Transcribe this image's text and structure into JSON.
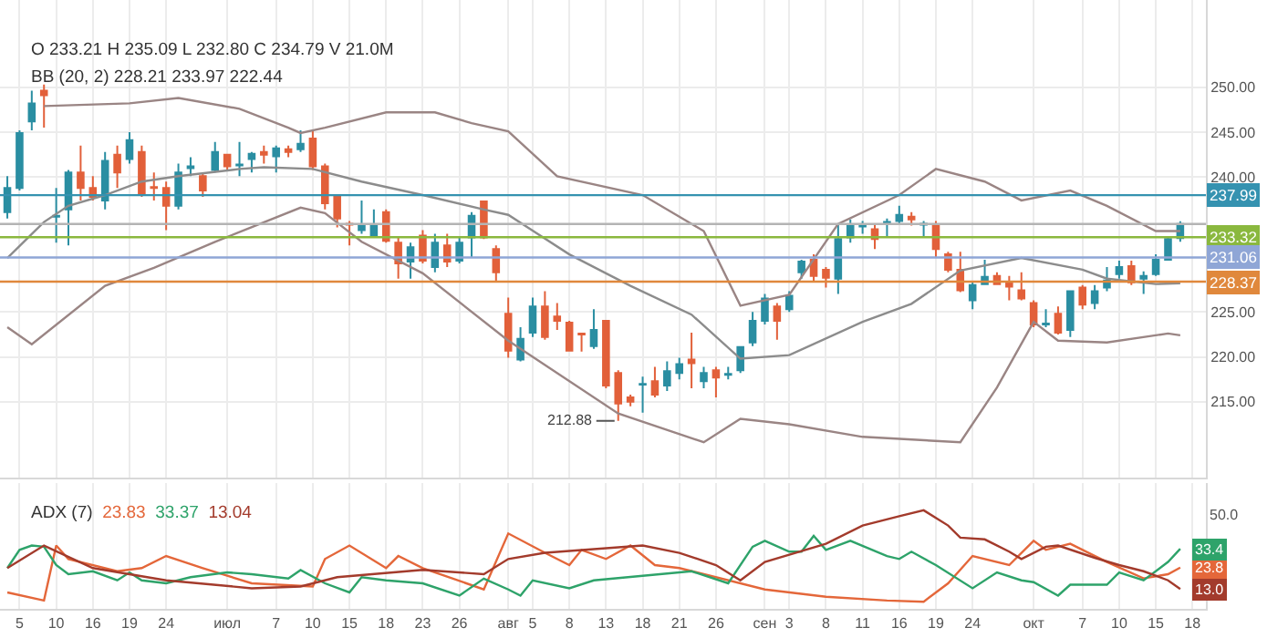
{
  "chart_data": [
    {
      "type": "candlestick",
      "tick_labels": "y",
      "grid": true,
      "annotations": [
        "O 233.21 H 235.09 L 232.80 C 234.79 V 21.0M",
        "BB (20, 2) 228.21 233.97 222.44",
        "212.88"
      ],
      "ohlc": [
        [
          236.1,
          240.1,
          235.4,
          238.8
        ],
        [
          238.8,
          245.2,
          238.5,
          244.9
        ],
        [
          246.2,
          249.6,
          245.2,
          248.2
        ],
        [
          249.6,
          250.3,
          245.5,
          249.1
        ],
        [
          235.6,
          238.8,
          232.7,
          235.7
        ],
        [
          236.4,
          240.8,
          232.4,
          240.5
        ],
        [
          240.5,
          243.5,
          237.4,
          238.8
        ],
        [
          238.8,
          240.1,
          237.4,
          237.8
        ],
        [
          237.4,
          242.8,
          236.4,
          241.8
        ],
        [
          242.5,
          243.5,
          238.8,
          240.5
        ],
        [
          242.0,
          245.0,
          241.5,
          244.1
        ],
        [
          242.8,
          243.5,
          237.8,
          238.0
        ],
        [
          238.9,
          240.5,
          237.4,
          238.8
        ],
        [
          238.8,
          239.5,
          234.1,
          236.8
        ],
        [
          236.8,
          241.5,
          236.4,
          240.5
        ],
        [
          241.0,
          242.2,
          240.1,
          241.2
        ],
        [
          240.1,
          240.5,
          237.8,
          238.5
        ],
        [
          240.8,
          243.9,
          240.5,
          242.8
        ],
        [
          242.5,
          242.6,
          240.8,
          241.2
        ],
        [
          241.3,
          243.9,
          240.1,
          241.4
        ],
        [
          242.0,
          242.8,
          240.5,
          242.6
        ],
        [
          242.8,
          243.5,
          241.5,
          242.5
        ],
        [
          242.3,
          243.5,
          240.5,
          243.2
        ],
        [
          243.1,
          243.5,
          242.2,
          242.8
        ],
        [
          243.1,
          245.2,
          242.8,
          243.7
        ],
        [
          244.3,
          245.2,
          240.8,
          241.2
        ],
        [
          241.2,
          241.5,
          236.4,
          237.1
        ],
        [
          237.9,
          238.1,
          234.4,
          235.4
        ],
        [
          234.8,
          235.1,
          232.4,
          234.7
        ],
        [
          234.1,
          237.4,
          233.7,
          234.6
        ],
        [
          233.5,
          236.4,
          233.4,
          234.6
        ],
        [
          236.1,
          236.4,
          232.7,
          232.9
        ],
        [
          232.7,
          233.4,
          228.7,
          230.4
        ],
        [
          230.6,
          232.7,
          228.7,
          232.2
        ],
        [
          233.5,
          234.1,
          230.4,
          230.7
        ],
        [
          230.0,
          233.7,
          229.4,
          232.7
        ],
        [
          232.4,
          233.7,
          230.0,
          230.6
        ],
        [
          230.7,
          233.4,
          230.4,
          232.7
        ],
        [
          233.3,
          236.1,
          231.0,
          235.7
        ],
        [
          237.3,
          237.4,
          233.1,
          233.3
        ],
        [
          232.0,
          232.4,
          228.3,
          229.4
        ],
        [
          224.8,
          226.6,
          219.9,
          220.7
        ],
        [
          219.7,
          223.3,
          219.5,
          222.0
        ],
        [
          222.7,
          226.6,
          222.2,
          225.6
        ],
        [
          225.6,
          227.3,
          221.9,
          222.2
        ],
        [
          224.5,
          226.0,
          223.0,
          224.0
        ],
        [
          223.8,
          224.0,
          220.6,
          220.7
        ],
        [
          222.6,
          222.7,
          220.6,
          222.5
        ],
        [
          221.2,
          225.3,
          220.9,
          223.0
        ],
        [
          224.0,
          224.1,
          216.5,
          216.8
        ],
        [
          218.2,
          218.5,
          212.88,
          214.8
        ],
        [
          215.5,
          215.8,
          214.5,
          215.0
        ],
        [
          216.9,
          217.8,
          213.8,
          217.0
        ],
        [
          217.3,
          218.9,
          215.5,
          215.8
        ],
        [
          216.8,
          219.5,
          216.2,
          218.4
        ],
        [
          218.2,
          219.9,
          217.5,
          219.2
        ],
        [
          219.7,
          222.7,
          216.5,
          219.3
        ],
        [
          217.3,
          218.9,
          216.5,
          218.2
        ],
        [
          218.5,
          218.9,
          215.5,
          217.7
        ],
        [
          218.0,
          218.9,
          217.5,
          218.1
        ],
        [
          218.5,
          221.2,
          218.2,
          221.1
        ],
        [
          221.6,
          225.0,
          221.2,
          224.0
        ],
        [
          224.0,
          227.0,
          223.6,
          226.5
        ],
        [
          225.6,
          226.0,
          221.9,
          224.0
        ],
        [
          225.3,
          227.3,
          225.0,
          226.8
        ],
        [
          229.4,
          230.8,
          228.7,
          230.6
        ],
        [
          230.8,
          231.4,
          228.3,
          229.0
        ],
        [
          229.7,
          230.0,
          227.7,
          228.8
        ],
        [
          228.7,
          234.7,
          227.0,
          233.1
        ],
        [
          233.3,
          235.3,
          232.7,
          234.6
        ],
        [
          234.5,
          235.1,
          233.7,
          234.6
        ],
        [
          234.2,
          234.7,
          232.0,
          233.1
        ],
        [
          234.9,
          235.4,
          233.4,
          235.0
        ],
        [
          235.1,
          236.8,
          234.7,
          235.8
        ],
        [
          235.6,
          236.1,
          234.6,
          235.3
        ],
        [
          234.7,
          235.1,
          233.4,
          234.8
        ],
        [
          234.7,
          235.1,
          231.0,
          232.0
        ],
        [
          231.4,
          231.7,
          229.4,
          229.7
        ],
        [
          229.7,
          231.7,
          227.2,
          227.4
        ],
        [
          226.3,
          228.3,
          225.3,
          228.0
        ],
        [
          228.1,
          230.8,
          228.0,
          228.9
        ],
        [
          229.0,
          229.4,
          228.0,
          228.1
        ],
        [
          228.3,
          229.0,
          226.3,
          227.8
        ],
        [
          227.4,
          229.4,
          226.3,
          226.5
        ],
        [
          226.0,
          226.3,
          223.3,
          223.6
        ],
        [
          223.6,
          225.3,
          223.3,
          223.7
        ],
        [
          224.8,
          225.6,
          222.5,
          222.7
        ],
        [
          223.0,
          227.4,
          222.2,
          227.3
        ],
        [
          227.7,
          228.0,
          225.3,
          225.8
        ],
        [
          226.0,
          228.0,
          225.3,
          227.3
        ],
        [
          227.7,
          230.0,
          227.3,
          228.5
        ],
        [
          229.2,
          230.7,
          228.7,
          230.0
        ],
        [
          230.1,
          230.7,
          228.0,
          228.3
        ],
        [
          228.7,
          229.5,
          227.0,
          229.0
        ],
        [
          229.2,
          231.4,
          229.0,
          230.8
        ],
        [
          230.8,
          233.4,
          230.7,
          233.1
        ],
        [
          233.21,
          235.09,
          232.8,
          234.79
        ],
        null
      ],
      "series": [
        {
          "type": "line",
          "color": "#9a8584",
          "values": [
            null,
            null,
            null,
            247.9,
            null,
            null,
            null,
            null,
            null,
            null,
            248.2,
            null,
            null,
            null,
            248.8,
            null,
            null,
            null,
            null,
            247.6,
            null,
            null,
            null,
            245.5,
            244.9,
            null,
            245.5,
            null,
            null,
            null,
            null,
            247.2,
            null,
            null,
            null,
            247.2,
            null,
            null,
            246.0,
            null,
            null,
            245.1,
            null,
            null,
            null,
            240.1,
            null,
            null,
            null,
            null,
            null,
            null,
            238.0,
            null,
            null,
            null,
            null,
            234.0,
            null,
            null,
            225.7,
            null,
            null,
            null,
            226.9,
            null,
            null,
            null,
            234.8,
            null,
            null,
            null,
            null,
            238.0,
            null,
            null,
            240.9,
            null,
            null,
            null,
            239.5,
            null,
            null,
            237.4,
            null,
            null,
            null,
            238.5,
            null,
            null,
            236.8,
            null,
            null,
            null,
            234.0,
            null,
            234.0,
            null
          ]
        },
        {
          "type": "line",
          "color": "#8c8c8c",
          "values": [
            231.0,
            null,
            null,
            235.0,
            null,
            236.8,
            null,
            null,
            238.0,
            null,
            null,
            239.5,
            null,
            null,
            240.1,
            null,
            null,
            null,
            null,
            240.9,
            null,
            241.1,
            null,
            null,
            null,
            240.9,
            null,
            null,
            null,
            239.5,
            null,
            null,
            null,
            null,
            238.0,
            null,
            null,
            null,
            null,
            236.4,
            null,
            235.8,
            null,
            null,
            null,
            null,
            231.4,
            null,
            null,
            229.3,
            null,
            227.9,
            null,
            null,
            null,
            null,
            224.7,
            null,
            null,
            null,
            219.8,
            null,
            null,
            null,
            220.2,
            null,
            null,
            null,
            null,
            null,
            223.9,
            null,
            null,
            null,
            225.9,
            null,
            null,
            null,
            229.6,
            null,
            null,
            null,
            null,
            231.0,
            null,
            null,
            null,
            null,
            229.7,
            null,
            228.7,
            null,
            null,
            null,
            228.1,
            null,
            228.2,
            null
          ]
        },
        {
          "type": "line",
          "color": "#9a8584",
          "values": [
            223.3,
            null,
            221.4,
            null,
            null,
            null,
            null,
            null,
            227.9,
            null,
            null,
            null,
            229.9,
            null,
            null,
            null,
            null,
            232.8,
            null,
            null,
            null,
            null,
            null,
            null,
            236.6,
            null,
            236.0,
            null,
            null,
            232.8,
            null,
            null,
            null,
            null,
            229.3,
            null,
            null,
            null,
            null,
            null,
            null,
            221.8,
            null,
            null,
            null,
            null,
            null,
            null,
            null,
            null,
            213.7,
            null,
            null,
            null,
            null,
            null,
            null,
            210.5,
            null,
            null,
            213.1,
            null,
            null,
            null,
            212.5,
            null,
            null,
            null,
            null,
            null,
            211.1,
            null,
            null,
            null,
            null,
            null,
            null,
            null,
            210.5,
            null,
            null,
            216.6,
            null,
            null,
            223.9,
            null,
            221.8,
            null,
            null,
            null,
            221.6,
            null,
            null,
            null,
            null,
            222.6,
            222.4,
            null
          ]
        }
      ],
      "ref_lines": [
        {
          "axis": "y",
          "value": 237.99,
          "label": "237.99",
          "color": "#3592b0"
        },
        {
          "axis": "y",
          "value": 234.79,
          "label": null,
          "color": "#b4b4b4"
        },
        {
          "axis": "y",
          "value": 233.32,
          "label": "233.32",
          "color": "#8ab83e"
        },
        {
          "axis": "y",
          "value": 231.06,
          "label": "231.06",
          "color": "#8fa6d6"
        },
        {
          "axis": "y",
          "value": 228.37,
          "label": "228.37",
          "color": "#e0883c"
        }
      ],
      "ylim": [
        206.6,
        259.7
      ],
      "yticks": [
        {
          "value": 215,
          "label": "215.00"
        },
        {
          "value": 220,
          "label": "220.00"
        },
        {
          "value": 225,
          "label": "225.00"
        },
        {
          "value": 240,
          "label": "240.00"
        },
        {
          "value": 245,
          "label": "245.00"
        },
        {
          "value": 250,
          "label": "250.00"
        }
      ]
    },
    {
      "type": "line",
      "title": "ADX (7)",
      "grid": "x",
      "ylim": [
        3,
        66.7
      ],
      "annotations": [
        "23.83",
        "33.37",
        "13.04",
        "50.0"
      ],
      "categories": [
        null,
        "5",
        null,
        null,
        "10",
        null,
        null,
        "16",
        null,
        null,
        "19",
        null,
        null,
        "24",
        null,
        null,
        null,
        null,
        "июл",
        null,
        null,
        null,
        "7",
        null,
        null,
        "10",
        null,
        null,
        "15",
        null,
        null,
        "18",
        null,
        null,
        "23",
        null,
        null,
        "26",
        null,
        null,
        null,
        "авг",
        null,
        "5",
        null,
        null,
        "8",
        null,
        null,
        "13",
        null,
        null,
        "18",
        null,
        null,
        "21",
        null,
        null,
        "26",
        null,
        null,
        null,
        "сен",
        null,
        "3",
        null,
        null,
        "8",
        null,
        null,
        "11",
        null,
        null,
        "16",
        null,
        null,
        "19",
        null,
        null,
        "24",
        null,
        null,
        null,
        null,
        "окт",
        null,
        null,
        null,
        "7",
        null,
        null,
        "10",
        null,
        null,
        "15",
        null,
        null,
        "18"
      ],
      "series": [
        {
          "color": "#e4673a",
          "values": [
            11.3,
            null,
            null,
            7.2,
            35.0,
            28.2,
            null,
            null,
            null,
            22.0,
            null,
            23.6,
            null,
            29.7,
            null,
            null,
            23.6,
            null,
            null,
            null,
            15.9,
            null,
            null,
            null,
            null,
            14.3,
            28.2,
            null,
            35.0,
            null,
            null,
            23.6,
            29.7,
            null,
            23.6,
            null,
            null,
            null,
            null,
            12.8,
            null,
            41.1,
            null,
            null,
            31.3,
            null,
            25.1,
            32.8,
            null,
            28.2,
            null,
            35.0,
            null,
            25.1,
            null,
            23.6,
            null,
            null,
            null,
            null,
            null,
            null,
            12.8,
            null,
            null,
            null,
            null,
            9.1,
            null,
            null,
            null,
            null,
            7.2,
            null,
            null,
            6.6,
            null,
            15.9,
            null,
            29.7,
            null,
            null,
            25.1,
            null,
            37.4,
            32.8,
            null,
            35.9,
            null,
            null,
            26.7,
            null,
            null,
            18.4,
            null,
            20.5,
            23.83,
            null
          ],
          "value_labels": [
            null,
            null,
            null,
            null,
            null,
            null,
            null,
            null,
            null,
            null,
            null,
            null,
            null,
            null,
            null,
            null,
            null,
            null,
            null,
            null,
            null,
            null,
            null,
            null,
            null,
            null,
            null,
            null,
            null,
            null,
            null,
            null,
            null,
            null,
            null,
            null,
            null,
            null,
            null,
            null,
            null,
            null,
            null,
            null,
            null,
            null,
            null,
            null,
            null,
            null,
            null,
            null,
            null,
            null,
            null,
            null,
            null,
            null,
            null,
            null,
            null,
            null,
            null,
            null,
            null,
            null,
            null,
            null,
            null,
            null,
            null,
            null,
            null,
            null,
            null,
            null,
            null,
            null,
            null,
            null,
            null,
            null,
            null,
            null,
            null,
            null,
            null,
            null,
            null,
            null,
            null,
            null,
            null,
            null,
            null,
            null,
            "23.8",
            null
          ]
        },
        {
          "color": "#2ea36a",
          "values": [
            23.6,
            32.8,
            35.0,
            34.4,
            25.1,
            20.5,
            null,
            22.0,
            null,
            17.4,
            21.4,
            17.4,
            null,
            15.9,
            null,
            19.0,
            null,
            null,
            21.4,
            null,
            20.5,
            null,
            null,
            18.3,
            22.6,
            null,
            15.9,
            null,
            11.3,
            19.0,
            null,
            17.4,
            null,
            null,
            15.9,
            null,
            null,
            9.7,
            null,
            18.3,
            null,
            12.8,
            9.7,
            17.4,
            null,
            null,
            13.4,
            null,
            17.4,
            null,
            null,
            null,
            null,
            null,
            null,
            null,
            22.0,
            null,
            null,
            15.9,
            null,
            34.4,
            37.4,
            null,
            31.9,
            31.9,
            39.9,
            32.8,
            null,
            37.4,
            null,
            null,
            29.7,
            28.2,
            31.9,
            null,
            25.1,
            null,
            null,
            13.4,
            null,
            21.4,
            null,
            17.4,
            16.5,
            null,
            9.7,
            15.2,
            null,
            null,
            15.2,
            21.4,
            null,
            17.4,
            null,
            26.7,
            33.37,
            null
          ],
          "value_labels": [
            null,
            null,
            null,
            null,
            null,
            null,
            null,
            null,
            null,
            null,
            null,
            null,
            null,
            null,
            null,
            null,
            null,
            null,
            null,
            null,
            null,
            null,
            null,
            null,
            null,
            null,
            null,
            null,
            null,
            null,
            null,
            null,
            null,
            null,
            null,
            null,
            null,
            null,
            null,
            null,
            null,
            null,
            null,
            null,
            null,
            null,
            null,
            null,
            null,
            null,
            null,
            null,
            null,
            null,
            null,
            null,
            null,
            null,
            null,
            null,
            null,
            null,
            null,
            null,
            null,
            null,
            null,
            null,
            null,
            null,
            null,
            null,
            null,
            null,
            null,
            null,
            null,
            null,
            null,
            null,
            null,
            null,
            null,
            null,
            null,
            null,
            null,
            null,
            null,
            null,
            null,
            null,
            null,
            null,
            null,
            null,
            "33.4",
            null
          ]
        },
        {
          "color": "#a33b2c",
          "values": [
            23.6,
            null,
            null,
            35.0,
            null,
            null,
            null,
            23.6,
            null,
            null,
            null,
            null,
            null,
            17.4,
            null,
            null,
            null,
            null,
            null,
            null,
            13.4,
            null,
            null,
            null,
            14.3,
            null,
            null,
            19.0,
            null,
            null,
            null,
            null,
            null,
            null,
            22.7,
            null,
            null,
            null,
            null,
            20.5,
            null,
            28.2,
            null,
            null,
            31.3,
            null,
            null,
            null,
            null,
            null,
            null,
            null,
            35.0,
            null,
            null,
            31.3,
            null,
            null,
            25.1,
            null,
            17.4,
            null,
            26.7,
            null,
            null,
            null,
            null,
            35.9,
            null,
            null,
            45.1,
            null,
            null,
            49.8,
            null,
            52.8,
            null,
            45.1,
            39.0,
            null,
            38.1,
            null,
            31.9,
            28.2,
            null,
            34.4,
            35.0,
            null,
            null,
            28.8,
            null,
            25.1,
            null,
            22.0,
            null,
            17.4,
            13.04,
            null
          ],
          "value_labels": [
            null,
            null,
            null,
            null,
            null,
            null,
            null,
            null,
            null,
            null,
            null,
            null,
            null,
            null,
            null,
            null,
            null,
            null,
            null,
            null,
            null,
            null,
            null,
            null,
            null,
            null,
            null,
            null,
            null,
            null,
            null,
            null,
            null,
            null,
            null,
            null,
            null,
            null,
            null,
            null,
            null,
            null,
            null,
            null,
            null,
            null,
            null,
            null,
            null,
            null,
            null,
            null,
            null,
            null,
            null,
            null,
            null,
            null,
            null,
            null,
            null,
            null,
            null,
            null,
            null,
            null,
            null,
            null,
            null,
            null,
            null,
            null,
            null,
            null,
            null,
            null,
            null,
            null,
            null,
            null,
            null,
            null,
            null,
            null,
            null,
            null,
            null,
            null,
            null,
            null,
            null,
            null,
            null,
            null,
            null,
            null,
            "13.0",
            null
          ]
        }
      ]
    }
  ]
}
